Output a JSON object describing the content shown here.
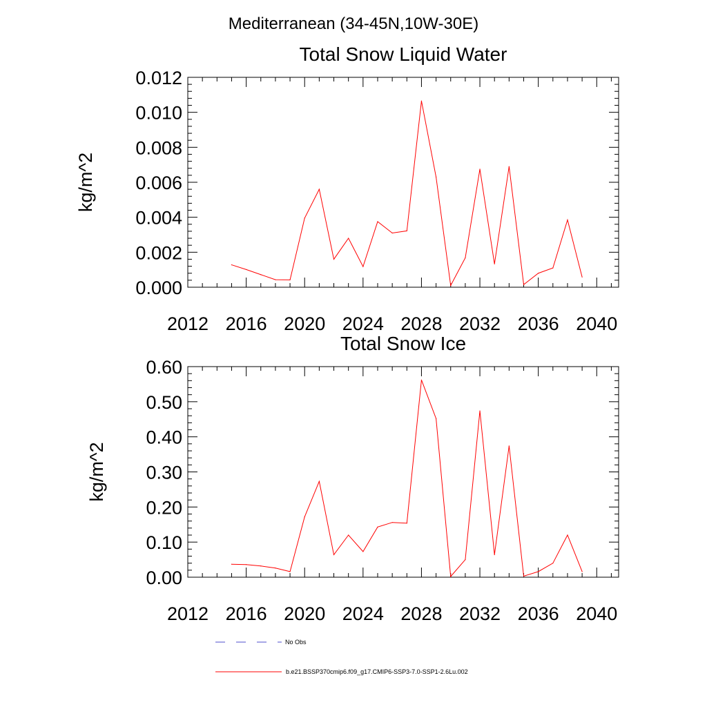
{
  "suptitle": "Mediterranean (34-45N,10W-30E)",
  "legend": [
    {
      "label": "No Obs",
      "color": "#4d4dcc",
      "style": "dashed"
    },
    {
      "label": "b.e21.BSSP370cmip6.f09_g17.CMIP6-SSP3-7.0-SSP1-2.6Lu.002",
      "color": "#ff0000",
      "style": "solid"
    }
  ],
  "chart_data": [
    {
      "type": "line",
      "title": "Total Snow Liquid Water",
      "xlabel": "",
      "ylabel": "kg/m^2",
      "xlim": [
        2012,
        2041.5
      ],
      "ylim": [
        0,
        0.012
      ],
      "xticks": [
        2012,
        2016,
        2020,
        2024,
        2028,
        2032,
        2036,
        2040
      ],
      "xtick_labels": [
        "2012",
        "2016",
        "2020",
        "2024",
        "2028",
        "2032",
        "2036",
        "2040"
      ],
      "yticks": [
        0,
        0.002,
        0.004,
        0.006,
        0.008,
        0.01,
        0.012
      ],
      "ytick_labels": [
        "0.000",
        "0.002",
        "0.004",
        "0.006",
        "0.008",
        "0.010",
        "0.012"
      ],
      "grid": false,
      "series": [
        {
          "name": "b.e21.BSSP370cmip6.f09_g17.CMIP6-SSP3-7.0-SSP1-2.6Lu.002",
          "color": "#ff0000",
          "x": [
            2015,
            2016,
            2017,
            2018,
            2019,
            2020,
            2021,
            2022,
            2023,
            2024,
            2025,
            2026,
            2027,
            2028,
            2029,
            2030,
            2031,
            2032,
            2033,
            2034,
            2035,
            2036,
            2037,
            2038,
            2039
          ],
          "y": [
            0.00128,
            0.00101,
            0.00072,
            0.00043,
            0.00042,
            0.00395,
            0.0056,
            0.0016,
            0.0028,
            0.00118,
            0.00375,
            0.0031,
            0.00322,
            0.01065,
            0.0063,
            0.0001,
            0.00168,
            0.00675,
            0.00133,
            0.0069,
            0.00015,
            0.0008,
            0.0011,
            0.00385,
            0.00058
          ]
        }
      ]
    },
    {
      "type": "line",
      "title": "Total Snow Ice",
      "xlabel": "",
      "ylabel": "kg/m^2",
      "xlim": [
        2012,
        2041.5
      ],
      "ylim": [
        0,
        0.6
      ],
      "xticks": [
        2012,
        2016,
        2020,
        2024,
        2028,
        2032,
        2036,
        2040
      ],
      "xtick_labels": [
        "2012",
        "2016",
        "2020",
        "2024",
        "2028",
        "2032",
        "2036",
        "2040"
      ],
      "yticks": [
        0,
        0.1,
        0.2,
        0.3,
        0.4,
        0.5,
        0.6
      ],
      "ytick_labels": [
        "0.00",
        "0.10",
        "0.20",
        "0.30",
        "0.40",
        "0.50",
        "0.60"
      ],
      "grid": false,
      "series": [
        {
          "name": "b.e21.BSSP370cmip6.f09_g17.CMIP6-SSP3-7.0-SSP1-2.6Lu.002",
          "color": "#ff0000",
          "x": [
            2015,
            2016,
            2017,
            2018,
            2019,
            2020,
            2021,
            2022,
            2023,
            2024,
            2025,
            2026,
            2027,
            2028,
            2029,
            2030,
            2031,
            2032,
            2033,
            2034,
            2035,
            2036,
            2037,
            2038,
            2039
          ],
          "y": [
            0.037,
            0.036,
            0.032,
            0.026,
            0.016,
            0.172,
            0.273,
            0.064,
            0.12,
            0.073,
            0.143,
            0.156,
            0.154,
            0.562,
            0.452,
            0.002,
            0.05,
            0.474,
            0.064,
            0.374,
            0.003,
            0.016,
            0.04,
            0.12,
            0.016
          ]
        }
      ]
    }
  ]
}
